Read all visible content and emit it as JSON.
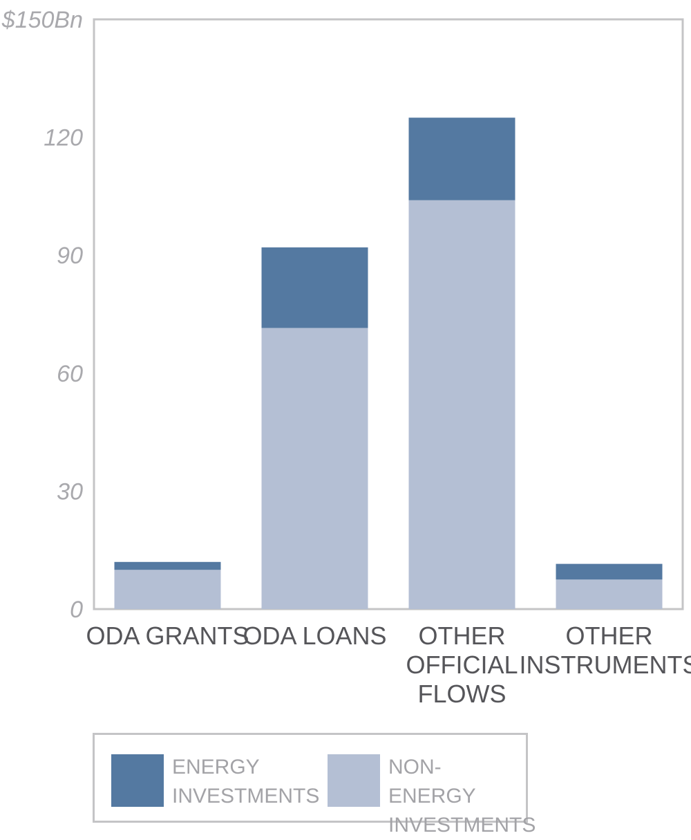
{
  "chart_data": {
    "type": "bar",
    "stacked": true,
    "categories": [
      "ODA GRANTS",
      "ODA LOANS",
      "OTHER OFFICIAL FLOWS",
      "OTHER INSTRUMENTS"
    ],
    "category_lines": [
      [
        "ODA GRANTS"
      ],
      [
        "ODA LOANS"
      ],
      [
        "OTHER",
        "OFFICIAL",
        "FLOWS"
      ],
      [
        "OTHER",
        "INSTRUMENTS"
      ]
    ],
    "series": [
      {
        "name": "NON-ENERGY INVESTMENTS",
        "values": [
          10,
          71.5,
          104,
          7.5
        ],
        "color": "#b4bfd4"
      },
      {
        "name": "ENERGY INVESTMENTS",
        "values": [
          2,
          20.5,
          21,
          4
        ],
        "color": "#5479a1"
      }
    ],
    "yticks": [
      0,
      30,
      60,
      90,
      120,
      150
    ],
    "ytick_labels": [
      "0",
      "30",
      "60",
      "90",
      "120",
      "$150Bn"
    ],
    "ylim": [
      0,
      150
    ],
    "grid": false,
    "legend": {
      "position": "bottom",
      "items": [
        {
          "label_lines": [
            "ENERGY",
            "INVESTMENTS"
          ],
          "color": "#5479a1"
        },
        {
          "label_lines": [
            "NON-ENERGY",
            "INVESTMENTS"
          ],
          "color": "#b4bfd4"
        }
      ]
    }
  }
}
